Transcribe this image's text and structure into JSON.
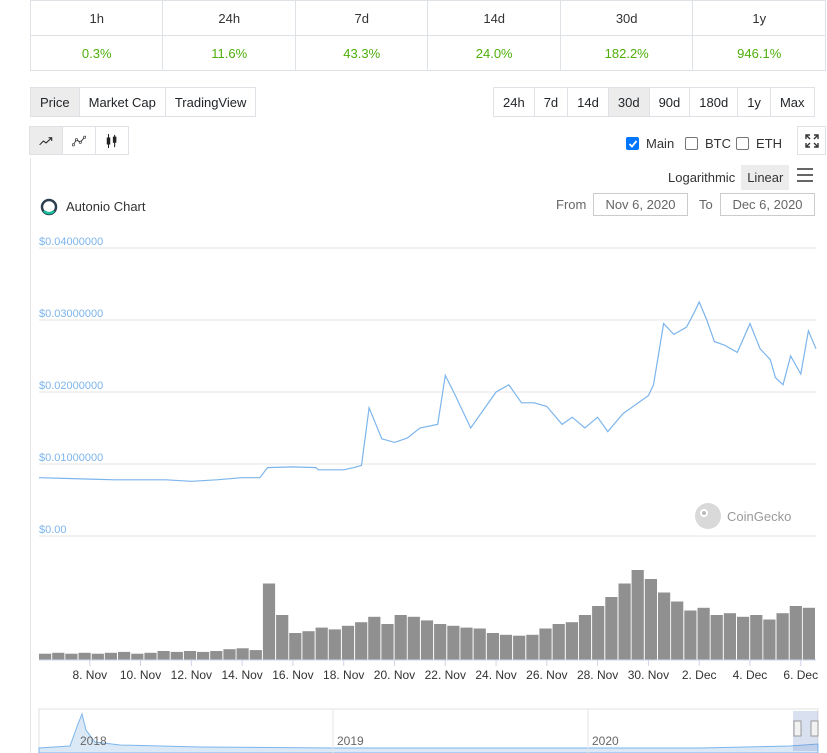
{
  "change_table": {
    "periods": [
      "1h",
      "24h",
      "7d",
      "14d",
      "30d",
      "1y"
    ],
    "values": [
      "0.3%",
      "11.6%",
      "43.3%",
      "24.0%",
      "182.2%",
      "946.1%"
    ]
  },
  "chart_type_tabs": [
    {
      "label": "Price",
      "active": true
    },
    {
      "label": "Market Cap",
      "active": false
    },
    {
      "label": "TradingView",
      "active": false
    }
  ],
  "range_buttons": [
    {
      "label": "24h",
      "active": false
    },
    {
      "label": "7d",
      "active": false
    },
    {
      "label": "14d",
      "active": false
    },
    {
      "label": "30d",
      "active": true
    },
    {
      "label": "90d",
      "active": false
    },
    {
      "label": "180d",
      "active": false
    },
    {
      "label": "1y",
      "active": false
    },
    {
      "label": "Max",
      "active": false
    }
  ],
  "style_buttons": [
    "line-chart-icon",
    "point-line-icon",
    "candlestick-icon"
  ],
  "compare": {
    "main": "Main",
    "btc": "BTC",
    "eth": "ETH",
    "main_checked": true,
    "btc_checked": false,
    "eth_checked": false
  },
  "scale": {
    "logarithmic": "Logarithmic",
    "linear": "Linear",
    "active": "Linear"
  },
  "chart_title": "Autonio Chart",
  "range": {
    "from_label": "From",
    "from_value": "Nov 6, 2020",
    "to_label": "To",
    "to_value": "Dec 6, 2020"
  },
  "watermark": "CoinGecko",
  "colors": {
    "price_line": "#7cb5ec",
    "volume": "#909090",
    "axis_label": "#7cb5ec",
    "green": "#4eaf0a"
  },
  "chart_data": {
    "type": "line",
    "title": "Autonio Chart",
    "y_ticks": [
      "$0.04000000",
      "$0.03000000",
      "$0.02000000",
      "$0.01000000",
      "$0.00"
    ],
    "ylim": [
      0,
      0.04
    ],
    "x_ticks": [
      "8. Nov",
      "10. Nov",
      "12. Nov",
      "14. Nov",
      "16. Nov",
      "18. Nov",
      "20. Nov",
      "22. Nov",
      "24. Nov",
      "26. Nov",
      "28. Nov",
      "30. Nov",
      "2. Dec",
      "4. Dec",
      "6. Dec"
    ],
    "x_days": [
      6,
      7,
      8,
      9,
      10,
      11,
      12,
      13,
      14,
      14.7,
      15,
      16,
      16.9,
      17,
      18,
      18.4,
      18.7,
      19,
      19.5,
      20,
      20.5,
      21,
      21.7,
      22,
      22.4,
      23,
      23.5,
      24,
      24.5,
      25,
      25.5,
      26,
      26.6,
      27,
      27.5,
      28,
      28.4,
      29,
      29.6,
      30,
      30.2,
      30.6,
      31,
      31.5,
      31.8,
      32,
      32.3,
      32.6,
      33,
      33.5,
      34,
      34.4,
      34.8,
      35,
      35.3,
      35.6,
      36,
      36.3,
      36.6
    ],
    "price": [
      0.0081,
      0.008,
      0.0079,
      0.0078,
      0.0078,
      0.0078,
      0.0076,
      0.0078,
      0.0081,
      0.0081,
      0.0095,
      0.0096,
      0.0095,
      0.0092,
      0.0092,
      0.0095,
      0.0098,
      0.0178,
      0.0135,
      0.013,
      0.0136,
      0.015,
      0.0155,
      0.0223,
      0.0195,
      0.015,
      0.0175,
      0.02,
      0.021,
      0.0185,
      0.0185,
      0.018,
      0.0155,
      0.0165,
      0.015,
      0.0165,
      0.0145,
      0.017,
      0.0185,
      0.0195,
      0.021,
      0.0295,
      0.028,
      0.029,
      0.031,
      0.0325,
      0.03,
      0.027,
      0.0265,
      0.0255,
      0.0295,
      0.026,
      0.0245,
      0.022,
      0.021,
      0.025,
      0.0225,
      0.0285,
      0.026
    ],
    "volume_rel": [
      0.07,
      0.08,
      0.07,
      0.08,
      0.07,
      0.08,
      0.09,
      0.07,
      0.08,
      0.1,
      0.09,
      0.1,
      0.09,
      0.1,
      0.12,
      0.13,
      0.11,
      0.85,
      0.5,
      0.3,
      0.32,
      0.36,
      0.34,
      0.38,
      0.42,
      0.48,
      0.4,
      0.5,
      0.48,
      0.44,
      0.4,
      0.38,
      0.36,
      0.35,
      0.3,
      0.28,
      0.27,
      0.28,
      0.35,
      0.4,
      0.42,
      0.5,
      0.6,
      0.7,
      0.85,
      1.0,
      0.9,
      0.75,
      0.65,
      0.55,
      0.58,
      0.5,
      0.52,
      0.48,
      0.5,
      0.45,
      0.52,
      0.6,
      0.58
    ],
    "navigator_labels": [
      "2018",
      "2019",
      "2020"
    ]
  }
}
